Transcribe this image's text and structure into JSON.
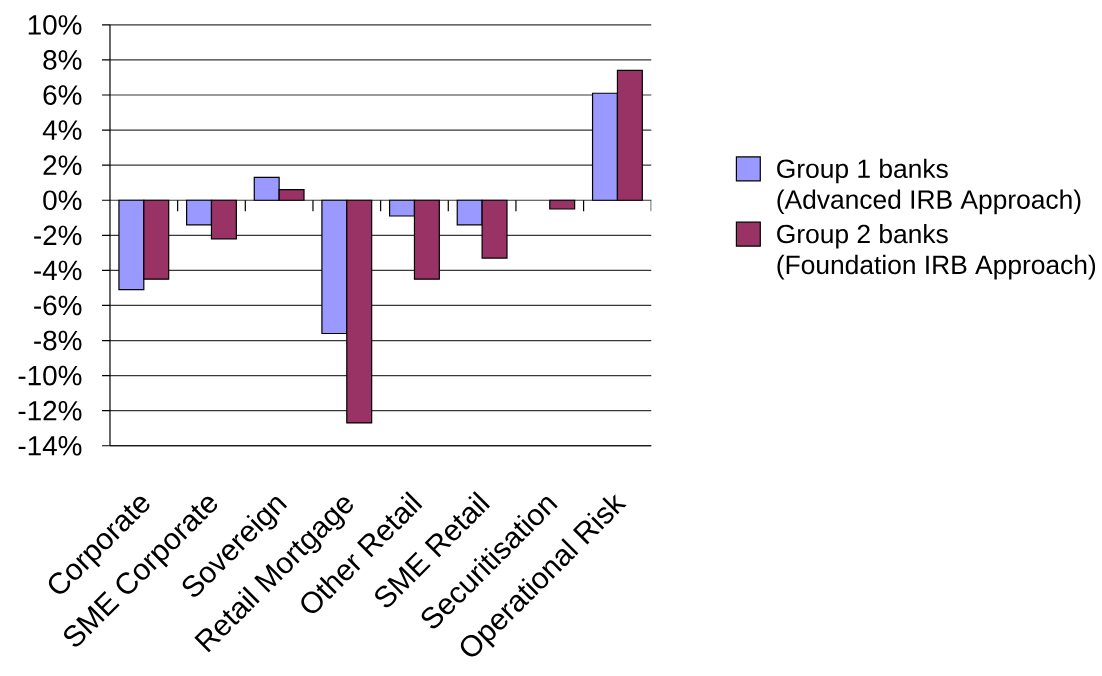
{
  "chart_data": {
    "type": "bar",
    "categories": [
      "Corporate",
      "SME Corporate",
      "Sovereign",
      "Retail Mortgage",
      "Other Retail",
      "SME Retail",
      "Securitisation",
      "Operational Risk"
    ],
    "series": [
      {
        "name": "Group 1 banks (Advanced IRB Approach)",
        "color": "#9999ff",
        "values": [
          -5.1,
          -1.4,
          1.3,
          -7.6,
          -0.9,
          -1.4,
          null,
          6.1
        ]
      },
      {
        "name": "Group 2 banks (Foundation IRB Approach)",
        "color": "#993366",
        "values": [
          -4.5,
          -2.2,
          0.6,
          -12.7,
          -4.5,
          -3.3,
          -0.5,
          7.4
        ]
      }
    ],
    "ylim": [
      -14,
      10
    ],
    "yticks": [
      {
        "value": -14,
        "label": "-14%"
      },
      {
        "value": -12,
        "label": "-12%"
      },
      {
        "value": -10,
        "label": "-10%"
      },
      {
        "value": -8,
        "label": "-8%"
      },
      {
        "value": -6,
        "label": "-6%"
      },
      {
        "value": -4,
        "label": "-4%"
      },
      {
        "value": -2,
        "label": "-2%"
      },
      {
        "value": 0,
        "label": "0%"
      },
      {
        "value": 2,
        "label": "2%"
      },
      {
        "value": 4,
        "label": "4%"
      },
      {
        "value": 6,
        "label": "6%"
      },
      {
        "value": 8,
        "label": "8%"
      },
      {
        "value": 10,
        "label": "10%"
      }
    ],
    "grid": "y",
    "legend": "right"
  }
}
